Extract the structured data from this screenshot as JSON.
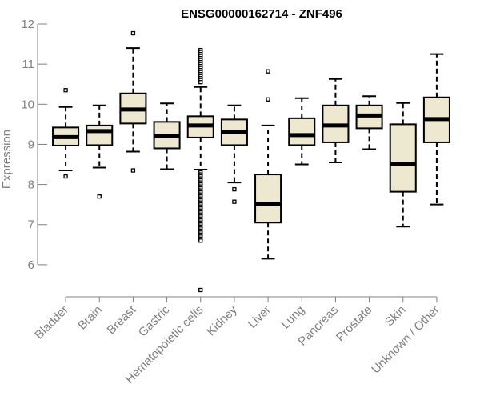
{
  "chart_data": {
    "type": "boxplot",
    "title": "ENSG00000162714 - ZNF496",
    "xlabel": "",
    "ylabel": "Expression",
    "ylim": [
      5.3,
      12.0
    ],
    "yticks": [
      6,
      7,
      8,
      9,
      10,
      11,
      12
    ],
    "colors": {
      "box_fill": "#EEE8D0",
      "box_stroke": "#000000",
      "median": "#000000",
      "axis": "#808080",
      "title": "#000000"
    },
    "categories": [
      "Bladder",
      "Brain",
      "Breast",
      "Gastric",
      "Hematopoietic cells",
      "Kidney",
      "Liver",
      "Lung",
      "Pancreas",
      "Prostate",
      "Skin",
      "Unknown / Other"
    ],
    "boxes": [
      {
        "category": "Bladder",
        "whisker_low": 8.35,
        "q1": 8.97,
        "median": 9.18,
        "q3": 9.42,
        "whisker_high": 9.93,
        "outliers": [
          10.35,
          8.2
        ]
      },
      {
        "category": "Brain",
        "whisker_low": 8.42,
        "q1": 8.98,
        "median": 9.33,
        "q3": 9.47,
        "whisker_high": 9.97,
        "outliers": [
          7.7
        ]
      },
      {
        "category": "Breast",
        "whisker_low": 8.82,
        "q1": 9.52,
        "median": 9.87,
        "q3": 10.27,
        "whisker_high": 11.4,
        "outliers": [
          11.77,
          8.35
        ]
      },
      {
        "category": "Gastric",
        "whisker_low": 8.38,
        "q1": 8.9,
        "median": 9.2,
        "q3": 9.56,
        "whisker_high": 10.02,
        "outliers": []
      },
      {
        "category": "Hematopoietic cells",
        "whisker_low": 8.37,
        "q1": 9.17,
        "median": 9.47,
        "q3": 9.7,
        "whisker_high": 10.43,
        "outliers": [
          11.35,
          11.3,
          11.25,
          11.2,
          11.15,
          11.1,
          11.05,
          11.0,
          10.95,
          10.9,
          10.85,
          10.8,
          10.75,
          10.7,
          10.65,
          10.6,
          10.55,
          8.3,
          8.25,
          8.2,
          8.15,
          8.1,
          8.05,
          8.0,
          7.95,
          7.9,
          7.85,
          7.8,
          7.75,
          7.7,
          7.65,
          7.6,
          7.55,
          7.5,
          7.45,
          7.4,
          7.35,
          7.3,
          7.25,
          7.2,
          7.15,
          7.1,
          7.05,
          7.0,
          6.95,
          6.9,
          6.85,
          6.8,
          6.75,
          6.7,
          6.65,
          6.6,
          5.37
        ]
      },
      {
        "category": "Kidney",
        "whisker_low": 8.05,
        "q1": 8.98,
        "median": 9.3,
        "q3": 9.62,
        "whisker_high": 9.97,
        "outliers": [
          7.88,
          7.57
        ]
      },
      {
        "category": "Liver",
        "whisker_low": 6.15,
        "q1": 7.05,
        "median": 7.52,
        "q3": 8.25,
        "whisker_high": 9.47,
        "outliers": [
          10.82,
          10.12
        ]
      },
      {
        "category": "Lung",
        "whisker_low": 8.5,
        "q1": 8.98,
        "median": 9.23,
        "q3": 9.65,
        "whisker_high": 10.15,
        "outliers": []
      },
      {
        "category": "Pancreas",
        "whisker_low": 8.55,
        "q1": 9.05,
        "median": 9.47,
        "q3": 9.97,
        "whisker_high": 10.63,
        "outliers": []
      },
      {
        "category": "Prostate",
        "whisker_low": 8.88,
        "q1": 9.4,
        "median": 9.72,
        "q3": 9.97,
        "whisker_high": 10.2,
        "outliers": []
      },
      {
        "category": "Skin",
        "whisker_low": 6.95,
        "q1": 7.82,
        "median": 8.5,
        "q3": 9.5,
        "whisker_high": 10.03,
        "outliers": []
      },
      {
        "category": "Unknown / Other",
        "whisker_low": 7.5,
        "q1": 9.05,
        "median": 9.63,
        "q3": 10.17,
        "whisker_high": 11.25,
        "outliers": []
      }
    ]
  }
}
